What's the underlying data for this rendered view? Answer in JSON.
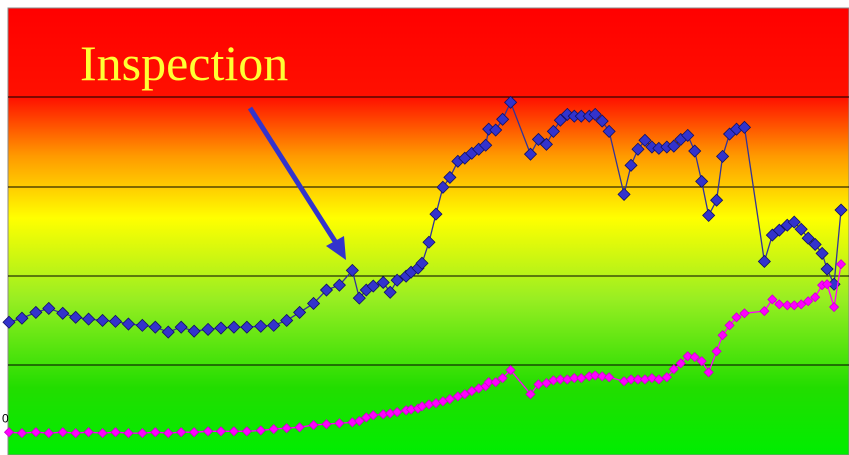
{
  "chart_data": {
    "type": "line",
    "annotation": "Inspection",
    "x": [
      0,
      13,
      27,
      40,
      54,
      67,
      80,
      94,
      107,
      120,
      134,
      147,
      160,
      173,
      186,
      200,
      213,
      226,
      239,
      253,
      266,
      279,
      292,
      306,
      319,
      332,
      345,
      352,
      359,
      366,
      376,
      383,
      390,
      399,
      404,
      411,
      415,
      422,
      429,
      436,
      443,
      451,
      458,
      465,
      472,
      479,
      482,
      489,
      496,
      504,
      524,
      532,
      540,
      547,
      554,
      561,
      568,
      575,
      583,
      589,
      596,
      603,
      618,
      625,
      632,
      639,
      646,
      653,
      661,
      668,
      675,
      682,
      689,
      696,
      703,
      711,
      717,
      724,
      731,
      739,
      759,
      767,
      774,
      782,
      789,
      796,
      803,
      810,
      817,
      822,
      829,
      836
    ],
    "series": [
      {
        "color": "#3333cc",
        "values": [
          21.7,
          22.6,
          23.9,
          24.8,
          23.7,
          22.8,
          22.4,
          22.1,
          21.9,
          21.3,
          21.0,
          20.6,
          19.5,
          20.6,
          19.7,
          20.1,
          20.4,
          20.6,
          20.6,
          20.8,
          21.0,
          22.1,
          23.9,
          25.9,
          28.9,
          30.0,
          33.3,
          27.1,
          28.9,
          29.8,
          30.6,
          28.4,
          31.1,
          32.0,
          32.9,
          33.8,
          34.9,
          39.6,
          45.9,
          51.9,
          54.1,
          57.7,
          58.4,
          59.5,
          60.4,
          61.3,
          64.9,
          64.7,
          67.1,
          70.9,
          59.3,
          62.6,
          61.5,
          64.4,
          66.9,
          68.2,
          67.8,
          67.8,
          67.8,
          68.2,
          66.7,
          64.4,
          50.3,
          56.8,
          60.4,
          62.4,
          60.9,
          60.6,
          60.9,
          61.1,
          62.6,
          63.5,
          60.0,
          53.2,
          45.6,
          49.0,
          58.8,
          63.8,
          64.9,
          65.3,
          35.3,
          41.2,
          42.3,
          43.4,
          44.1,
          42.5,
          40.5,
          39.1,
          37.1,
          33.6,
          30.2,
          46.8
        ]
      },
      {
        "color": "#ff00ff",
        "values": [
          -2.9,
          -3.1,
          -2.9,
          -3.1,
          -2.9,
          -3.1,
          -2.9,
          -3.1,
          -2.9,
          -3.1,
          -3.1,
          -2.9,
          -3.1,
          -2.9,
          -2.9,
          -2.7,
          -2.7,
          -2.7,
          -2.7,
          -2.5,
          -2.2,
          -2.0,
          -1.8,
          -1.3,
          -1.1,
          -0.9,
          -0.7,
          -0.4,
          0.4,
          0.9,
          1.1,
          1.3,
          1.6,
          2.0,
          2.2,
          2.4,
          2.9,
          3.3,
          3.6,
          4.0,
          4.5,
          5.1,
          5.6,
          6.3,
          6.9,
          7.4,
          8.3,
          8.3,
          9.2,
          11.0,
          5.6,
          7.8,
          8.1,
          8.7,
          8.9,
          8.9,
          9.2,
          9.2,
          9.6,
          9.8,
          9.6,
          9.4,
          8.5,
          8.9,
          8.9,
          8.9,
          9.2,
          8.9,
          9.4,
          11.2,
          12.5,
          14.1,
          13.9,
          13.0,
          10.5,
          15.2,
          18.8,
          21.0,
          22.8,
          23.7,
          24.2,
          26.8,
          25.7,
          25.5,
          25.5,
          25.7,
          26.4,
          27.3,
          30.0,
          30.2,
          25.1,
          34.7
        ]
      }
    ],
    "xlim": [
      0,
      840
    ],
    "ylim": [
      -8,
      92
    ],
    "yticks": [
      0
    ]
  }
}
